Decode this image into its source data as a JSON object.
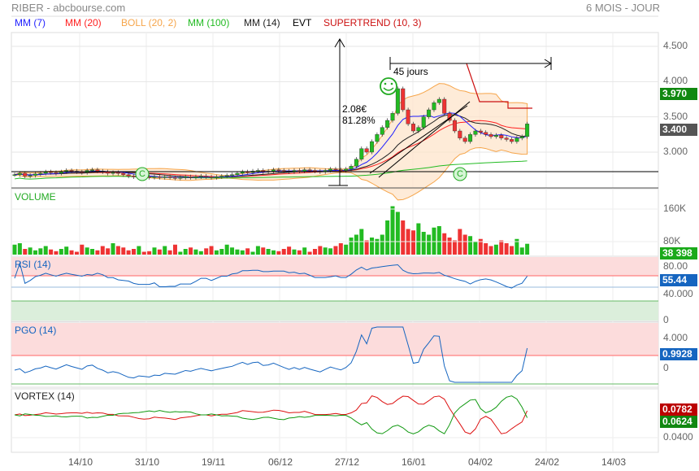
{
  "header": {
    "title": "RIBER - abcbourse.com",
    "period": "6 MOIS - JOUR"
  },
  "legend": [
    {
      "label": "MM (7)",
      "color": "#1f1fff"
    },
    {
      "label": "MM (20)",
      "color": "#ff2020"
    },
    {
      "label": "BOLL (20, 2)",
      "color": "#f6a54a"
    },
    {
      "label": "MM (100)",
      "color": "#22bb22"
    },
    {
      "label": "MM (14)",
      "color": "#222222"
    },
    {
      "label": "EVT",
      "color": "#000000"
    },
    {
      "label": "SUPERTREND (10, 3)",
      "color": "#cc1111"
    }
  ],
  "annotations": {
    "variation": "2.08€",
    "variation_pct": "81.28%",
    "duration": "45 jours",
    "signal_c": "C"
  },
  "panels": {
    "volume": "VOLUME",
    "rsi": "RSI (14)",
    "pgo": "PGO (14)",
    "vortex": "VORTEX (14)"
  },
  "axes": {
    "price_ticks": [
      "4.500",
      "4.000",
      "3.500",
      "3.000"
    ],
    "volume_ticks": [
      "160K",
      "80K"
    ],
    "rsi_ticks": [
      "80.00",
      "40.000",
      "0"
    ],
    "pgo_ticks": [
      "4.000",
      "0"
    ],
    "vortex_ticks": [
      "0.0400"
    ],
    "x_ticks": [
      "14/10",
      "31/10",
      "19/11",
      "06/12",
      "27/12",
      "16/01",
      "04/02",
      "24/02",
      "14/03"
    ]
  },
  "current": {
    "high": "3.970",
    "price": "3.400",
    "volume": "38 398",
    "rsi": "55.44",
    "pgo": "0.9928",
    "vortex_plus": "0.0782",
    "vortex_minus": "0.0624"
  },
  "colors": {
    "up": "#22bb22",
    "down": "#ee3333",
    "price_label": "#555555",
    "high_label": "#118811",
    "rsi_label": "#1565c0"
  },
  "chart_data": {
    "type": "candlestick",
    "title": "RIBER",
    "closes": [
      2.68,
      2.7,
      2.66,
      2.67,
      2.69,
      2.7,
      2.72,
      2.71,
      2.7,
      2.72,
      2.74,
      2.73,
      2.72,
      2.71,
      2.74,
      2.75,
      2.73,
      2.72,
      2.7,
      2.71,
      2.7,
      2.68,
      2.66,
      2.65,
      2.66,
      2.65,
      2.64,
      2.65,
      2.64,
      2.65,
      2.64,
      2.63,
      2.64,
      2.65,
      2.64,
      2.65,
      2.66,
      2.65,
      2.64,
      2.65,
      2.66,
      2.67,
      2.68,
      2.7,
      2.72,
      2.71,
      2.73,
      2.74,
      2.72,
      2.73,
      2.75,
      2.74,
      2.73,
      2.72,
      2.74,
      2.73,
      2.75,
      2.74,
      2.73,
      2.72,
      2.74,
      2.76,
      2.75,
      2.74,
      2.76,
      2.8,
      2.9,
      3.05,
      3.0,
      3.15,
      3.25,
      3.35,
      3.45,
      3.55,
      3.9,
      3.6,
      3.4,
      3.3,
      3.35,
      3.5,
      3.6,
      3.7,
      3.75,
      3.55,
      3.45,
      3.3,
      3.2,
      3.15,
      3.25,
      3.3,
      3.28,
      3.25,
      3.22,
      3.24,
      3.2,
      3.18,
      3.15,
      3.2,
      3.22,
      3.4
    ],
    "volumes_k": [
      35,
      40,
      20,
      25,
      15,
      22,
      30,
      18,
      12,
      20,
      28,
      15,
      10,
      35,
      25,
      20,
      15,
      30,
      22,
      40,
      30,
      25,
      15,
      20,
      30,
      10,
      12,
      25,
      18,
      30,
      15,
      35,
      10,
      20,
      25,
      18,
      12,
      22,
      30,
      15,
      20,
      35,
      25,
      18,
      15,
      22,
      10,
      30,
      25,
      20,
      15,
      12,
      20,
      28,
      18,
      15,
      25,
      10,
      20,
      30,
      25,
      22,
      30,
      40,
      35,
      60,
      70,
      90,
      50,
      60,
      55,
      70,
      120,
      170,
      150,
      120,
      90,
      85,
      110,
      80,
      70,
      95,
      100,
      75,
      60,
      50,
      90,
      70,
      65,
      45,
      55,
      40,
      30,
      35,
      50,
      40,
      30,
      55,
      25,
      38
    ],
    "ylim": [
      2.55,
      4.7
    ]
  }
}
